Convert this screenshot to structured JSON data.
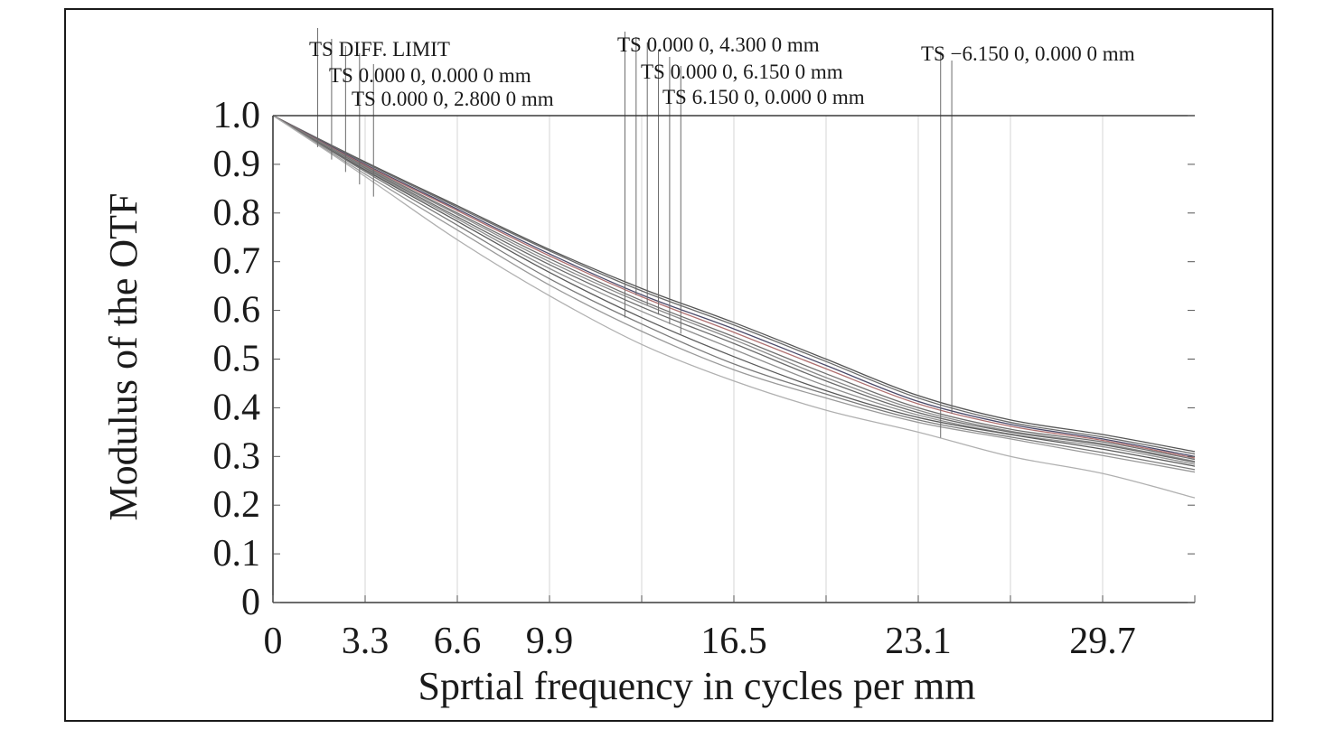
{
  "chart_data": {
    "type": "line",
    "title": "",
    "xlabel": "Sprtial frequency in cycles per mm",
    "ylabel": "Modulus of the OTF",
    "xlim": [
      0,
      33
    ],
    "ylim": [
      0,
      1.0
    ],
    "x_ticks": [
      0,
      3.3,
      6.6,
      9.9,
      13.2,
      16.5,
      19.8,
      23.1,
      26.4,
      29.7,
      33
    ],
    "x_tick_labels": [
      "0",
      "3.3",
      "6.6",
      "9.9",
      "",
      "16.5",
      "",
      "23.1",
      "",
      "29.7",
      ""
    ],
    "y_ticks": [
      0,
      0.1,
      0.2,
      0.3,
      0.4,
      0.5,
      0.6,
      0.7,
      0.8,
      0.9,
      1.0
    ],
    "y_tick_labels": [
      "0",
      "0.1",
      "0.2",
      "0.3",
      "0.4",
      "0.5",
      "0.6",
      "0.7",
      "0.8",
      "0.9",
      "1.0"
    ],
    "grid": "vertical",
    "x": [
      0,
      3.3,
      6.6,
      9.9,
      13.2,
      16.5,
      19.8,
      23.1,
      26.4,
      29.7,
      33
    ],
    "series": [
      {
        "name": "TS DIFF. LIMIT",
        "color": "#555555",
        "values": [
          1.0,
          0.905,
          0.815,
          0.725,
          0.645,
          0.575,
          0.5,
          0.425,
          0.375,
          0.345,
          0.31
        ]
      },
      {
        "name": "",
        "color": "#6a6a6a",
        "values": [
          1.0,
          0.903,
          0.812,
          0.722,
          0.64,
          0.57,
          0.495,
          0.42,
          0.37,
          0.34,
          0.305
        ]
      },
      {
        "name": "TS 0.000 0, 0.000 0 mm",
        "color": "#4a4a6a",
        "values": [
          1.0,
          0.9,
          0.808,
          0.716,
          0.632,
          0.562,
          0.487,
          0.413,
          0.366,
          0.336,
          0.3
        ]
      },
      {
        "name": "",
        "color": "#b07070",
        "values": [
          1.0,
          0.898,
          0.805,
          0.712,
          0.628,
          0.555,
          0.48,
          0.408,
          0.362,
          0.333,
          0.297
        ]
      },
      {
        "name": "TS 0.000 0, 2.800 0 mm",
        "color": "#707070",
        "values": [
          1.0,
          0.896,
          0.8,
          0.706,
          0.62,
          0.546,
          0.47,
          0.4,
          0.356,
          0.33,
          0.294
        ]
      },
      {
        "name": "",
        "color": "#8a8a8a",
        "values": [
          1.0,
          0.894,
          0.797,
          0.7,
          0.615,
          0.54,
          0.462,
          0.395,
          0.352,
          0.326,
          0.29
        ]
      },
      {
        "name": "TS 0.000 0, 4.300 0 mm",
        "color": "#6a6a6a",
        "values": [
          1.0,
          0.892,
          0.792,
          0.694,
          0.607,
          0.532,
          0.455,
          0.39,
          0.35,
          0.324,
          0.288
        ]
      },
      {
        "name": "",
        "color": "#909090",
        "values": [
          1.0,
          0.89,
          0.788,
          0.686,
          0.598,
          0.52,
          0.445,
          0.385,
          0.346,
          0.32,
          0.284
        ]
      },
      {
        "name": "TS 0.000 0, 6.150 0 mm",
        "color": "#5a5a5a",
        "values": [
          1.0,
          0.888,
          0.783,
          0.678,
          0.585,
          0.505,
          0.435,
          0.38,
          0.345,
          0.315,
          0.28
        ]
      },
      {
        "name": "",
        "color": "#7a7a7a",
        "values": [
          1.0,
          0.885,
          0.775,
          0.665,
          0.572,
          0.49,
          0.428,
          0.375,
          0.34,
          0.308,
          0.273
        ]
      },
      {
        "name": "TS 6.150 0, 0.000 0 mm",
        "color": "#9a9a9a",
        "values": [
          1.0,
          0.88,
          0.765,
          0.652,
          0.557,
          0.478,
          0.42,
          0.37,
          0.336,
          0.302,
          0.268
        ]
      },
      {
        "name": "TS −6.150 0, 0.000 0 mm",
        "color": "#b0b0b0",
        "values": [
          1.0,
          0.875,
          0.745,
          0.63,
          0.53,
          0.455,
          0.395,
          0.35,
          0.3,
          0.265,
          0.215
        ]
      }
    ],
    "annotations": [
      {
        "text": "TS DIFF. LIMIT"
      },
      {
        "text": "TS 0.000 0, 0.000 0 mm"
      },
      {
        "text": "TS 0.000 0, 2.800 0 mm"
      },
      {
        "text": "TS 0.000 0, 4.300 0 mm"
      },
      {
        "text": "TS 0.000 0, 6.150 0 mm"
      },
      {
        "text": "TS 6.150 0, 0.000 0 mm"
      },
      {
        "text": "TS −6.150 0, 0.000 0 mm"
      }
    ]
  }
}
